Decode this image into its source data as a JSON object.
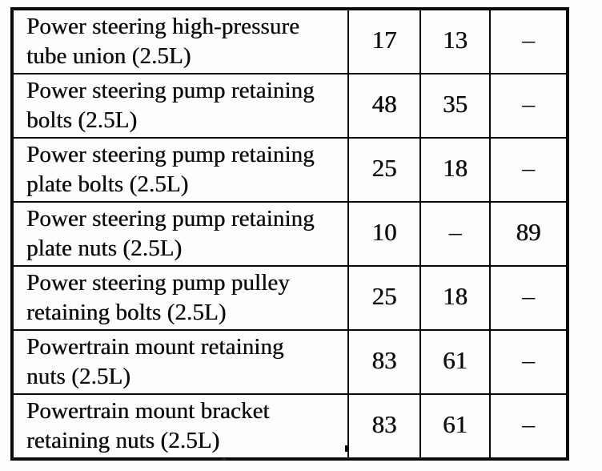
{
  "page": {
    "background": "#fdfdfd",
    "ink_color": "#0c0c0c",
    "border_color": "#0a0a0a"
  },
  "table": {
    "rows": [
      {
        "lines": [
          "Power steering high-pressure",
          "tube union (2.5L)"
        ],
        "values": [
          "17",
          "13",
          "–"
        ]
      },
      {
        "lines": [
          "Power steering pump retaining",
          "bolts (2.5L)"
        ],
        "values": [
          "48",
          "35",
          "–"
        ]
      },
      {
        "lines": [
          "Power steering pump retaining",
          "plate bolts (2.5L)"
        ],
        "values": [
          "25",
          "18",
          "–"
        ]
      },
      {
        "lines": [
          "Power steering pump retaining",
          "plate nuts (2.5L)"
        ],
        "values": [
          "10",
          "–",
          "89"
        ]
      },
      {
        "lines": [
          "Power steering pump pulley",
          "retaining bolts (2.5L)"
        ],
        "values": [
          "25",
          "18",
          "–"
        ]
      },
      {
        "lines": [
          "Powertrain mount retaining",
          "nuts (2.5L)"
        ],
        "values": [
          "83",
          "61",
          "–"
        ]
      },
      {
        "lines": [
          "Powertrain mount bracket",
          "retaining nuts (2.5L)"
        ],
        "values": [
          "83",
          "61",
          "–"
        ]
      }
    ]
  }
}
